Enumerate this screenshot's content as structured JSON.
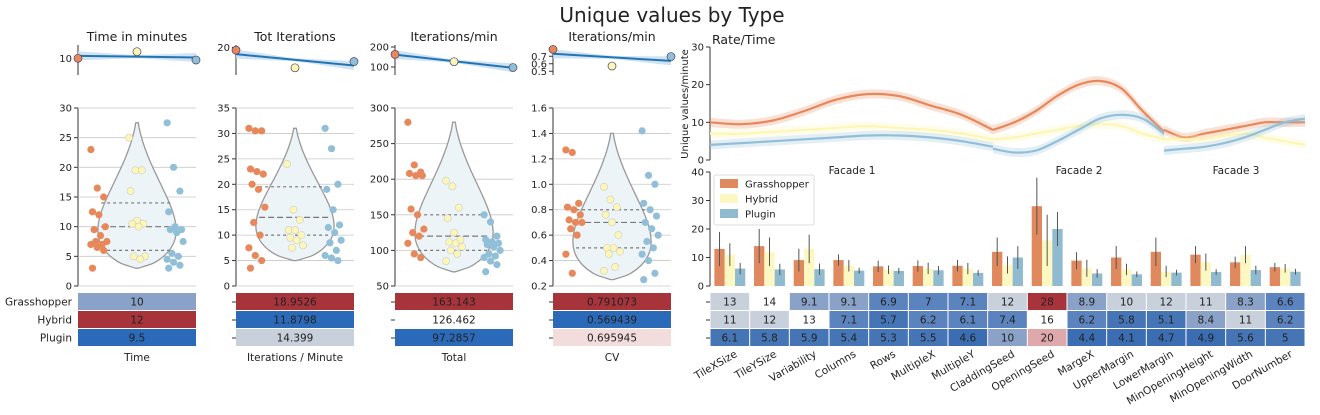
{
  "figure": {
    "title": "Unique values by Type",
    "type_labels": [
      "Grasshopper",
      "Hybrid",
      "Plugin"
    ],
    "colors": {
      "Grasshopper": "#e8875a",
      "Hybrid": "#fdf6b5",
      "Plugin": "#92bfd8",
      "trend": "#2275b5",
      "trend_band": "#c6dcef",
      "violin_fill": "#edf4f8",
      "violin_line": "#999999",
      "bar_gh": "#e0895e",
      "bar_hy": "#fdf8c2",
      "bar_pl": "#8fbad0",
      "cell_dark_red": "#a8343b",
      "cell_blue": "#2b6ab8",
      "cell_light": "#c8d0dc",
      "cell_pale_pink": "#f3dcdc",
      "cell_mid_blue": "#8aa2c8",
      "cell_pink": "#dfa9ab"
    }
  },
  "chart_data": [
    {
      "type": "scatter",
      "title": "Time in minutes",
      "xlabel": "Time",
      "trend_ylim": [
        5,
        14
      ],
      "trend_yticks": [
        "10"
      ],
      "trend_points": [
        10,
        12,
        9.5
      ],
      "ylim": [
        0,
        30
      ],
      "yticks": [
        "0",
        "5",
        "10",
        "15",
        "20",
        "25",
        "30"
      ],
      "violin": {
        "quartiles": [
          6,
          10,
          14
        ],
        "max": 27.5,
        "min": 3
      },
      "points": {
        "Grasshopper": [
          23,
          16.5,
          15,
          12.5,
          12,
          10,
          9.5,
          8.5,
          7.5,
          7.5,
          7,
          7,
          6.5,
          6,
          3
        ],
        "Hybrid": [
          25,
          19.5,
          19.5,
          16,
          11,
          10.5,
          10.5,
          10,
          5,
          5,
          4.5
        ],
        "Plugin": [
          27.5,
          20,
          16,
          12.5,
          10,
          9.5,
          9.5,
          9,
          7.5,
          5.5,
          5,
          4.5,
          4,
          3.5,
          3
        ]
      },
      "table": [
        {
          "label": "Grasshopper",
          "value": "10",
          "color": "#8aa2c8"
        },
        {
          "label": "Hybrid",
          "value": "12",
          "color": "#a8343b"
        },
        {
          "label": "Plugin",
          "value": "9.5",
          "color": "#2b6ab8"
        }
      ]
    },
    {
      "type": "scatter",
      "title": "Tot Iterations",
      "xlabel": "Iterations / Minute",
      "trend_ylim": [
        9,
        21
      ],
      "trend_yticks": [
        "20"
      ],
      "trend_points": [
        18.9526,
        11.8798,
        14.399
      ],
      "ylim": [
        0,
        35
      ],
      "yticks": [
        "0",
        "5",
        "10",
        "15",
        "20",
        "25",
        "30",
        "35"
      ],
      "violin": {
        "quartiles": [
          10,
          13.5,
          19.5
        ],
        "max": 31,
        "min": 5
      },
      "points": {
        "Grasshopper": [
          31,
          30.5,
          30.5,
          23,
          22.5,
          22,
          20,
          19,
          15.5,
          12.5,
          10,
          7.5,
          6,
          5,
          3.5
        ],
        "Hybrid": [
          24,
          15,
          13,
          11,
          11,
          10,
          9.5,
          9,
          8,
          7.5
        ],
        "Plugin": [
          31,
          27,
          20,
          19,
          15,
          12,
          11.5,
          10.5,
          9,
          8.5,
          7,
          6,
          5.5,
          5
        ]
      },
      "table": [
        {
          "label": "Grasshopper",
          "value": "18.9526",
          "color": "#a8343b"
        },
        {
          "label": "Hybrid",
          "value": "11.8798",
          "color": "#2b6ab8"
        },
        {
          "label": "Plugin",
          "value": "14.399",
          "color": "#c8d0dc"
        }
      ]
    },
    {
      "type": "scatter",
      "title": "Iterations/min",
      "xlabel": "Total",
      "trend_ylim": [
        60,
        210
      ],
      "trend_yticks": [
        "100",
        "200"
      ],
      "trend_points": [
        163.143,
        126.462,
        97.2857
      ],
      "ylim": [
        50,
        300
      ],
      "yticks": [
        "50",
        "100",
        "150",
        "200",
        "250",
        "300"
      ],
      "violin": {
        "quartiles": [
          100,
          120,
          150
        ],
        "max": 280,
        "min": 70
      },
      "points": {
        "Grasshopper": [
          280,
          220,
          210,
          208,
          205,
          205,
          158,
          150,
          130,
          125,
          120,
          110,
          95,
          90
        ],
        "Hybrid": [
          198,
          190,
          160,
          145,
          125,
          115,
          112,
          110,
          105,
          100,
          95,
          85
        ],
        "Plugin": [
          150,
          140,
          120,
          115,
          112,
          110,
          108,
          105,
          100,
          95,
          92,
          90,
          85,
          80,
          70
        ]
      },
      "table": [
        {
          "label": "Grasshopper",
          "value": "163.143",
          "color": "#a8343b"
        },
        {
          "label": "Hybrid",
          "value": "126.462",
          "color": "#ffffff"
        },
        {
          "label": "Plugin",
          "value": "97.2857",
          "color": "#2b6ab8"
        }
      ]
    },
    {
      "type": "scatter",
      "title": "Iterations/min",
      "xlabel": "CV",
      "trend_ylim": [
        0.45,
        0.85
      ],
      "trend_yticks": [
        "0.5",
        "0.6",
        "0.7"
      ],
      "trend_points": [
        0.791073,
        0.569439,
        0.695945
      ],
      "ylim": [
        0.2,
        1.6
      ],
      "yticks": [
        "0.2",
        "0.4",
        "0.6",
        "0.8",
        "1.0",
        "1.2",
        "1.4",
        "1.6"
      ],
      "violin": {
        "quartiles": [
          0.5,
          0.7,
          0.8
        ],
        "max": 1.4,
        "min": 0.25
      },
      "points": {
        "Grasshopper": [
          1.27,
          1.25,
          0.85,
          0.82,
          0.8,
          0.76,
          0.72,
          0.7,
          0.7,
          0.65,
          0.6,
          0.45,
          0.3
        ],
        "Hybrid": [
          0.98,
          0.88,
          0.82,
          0.76,
          0.7,
          0.6,
          0.5,
          0.5,
          0.47,
          0.45,
          0.35,
          0.32
        ],
        "Plugin": [
          1.42,
          1.07,
          1.0,
          0.85,
          0.8,
          0.75,
          0.7,
          0.65,
          0.6,
          0.55,
          0.5,
          0.45,
          0.4,
          0.3,
          0.25
        ]
      },
      "table": [
        {
          "label": "Grasshopper",
          "value": "0.791073",
          "color": "#a8343b"
        },
        {
          "label": "Hybrid",
          "value": "0.569439",
          "color": "#2b6ab8"
        },
        {
          "label": "Plugin",
          "value": "0.695945",
          "color": "#f3dcdc"
        }
      ]
    },
    {
      "type": "line",
      "title": "Rate/Time",
      "ylabel": "Unique values/minute",
      "ylim": [
        0,
        30
      ],
      "yticks": [
        "0",
        "10",
        "20",
        "30"
      ],
      "facades": [
        "Facade 1",
        "Facade 2",
        "Facade 3"
      ],
      "series": [
        {
          "name": "Grasshopper",
          "segments": [
            [
              10,
              9.5,
              10.5,
              13,
              16,
              17.5,
              17,
              14.5,
              12,
              8
            ],
            [
              8,
              10,
              13,
              17,
              20,
              21,
              19,
              13,
              7.5
            ],
            [
              8,
              6,
              7,
              8,
              9,
              10,
              10,
              10
            ]
          ]
        },
        {
          "name": "Hybrid",
          "segments": [
            [
              7,
              7,
              7.5,
              8,
              8.5,
              9,
              8.5,
              8,
              7,
              5.5
            ],
            [
              5.5,
              6,
              7,
              8,
              9,
              9.5,
              9,
              7,
              5.5
            ],
            [
              5.5,
              5.5,
              5.5,
              6.5,
              7,
              6,
              5,
              4
            ]
          ]
        },
        {
          "name": "Plugin",
          "segments": [
            [
              4,
              4.5,
              5,
              5.5,
              6,
              6.5,
              6.5,
              6,
              5,
              3.5
            ],
            [
              3,
              2,
              2.5,
              5,
              8,
              11,
              12,
              11,
              7
            ],
            [
              2.5,
              3,
              3.5,
              4.5,
              6,
              8,
              10,
              11
            ]
          ]
        }
      ]
    },
    {
      "type": "bar",
      "ylim": [
        0,
        40
      ],
      "yticks": [
        "0",
        "10",
        "20",
        "30",
        "40"
      ],
      "legend": [
        "Grasshopper",
        "Hybrid",
        "Plugin"
      ],
      "legend_position": "top-left",
      "categories": [
        "TileXSize",
        "TileYSize",
        "Variability",
        "Columns",
        "Rows",
        "MultipleX",
        "MultipleY",
        "CladdingSeed",
        "OpeningSeed",
        "MargeX",
        "UpperMargin",
        "LowerMargin",
        "MinOpeningHeight",
        "MinOpeningWidth",
        "DoorNumber"
      ],
      "series": [
        {
          "name": "Grasshopper",
          "values": [
            13,
            14,
            9.1,
            9.1,
            6.9,
            7,
            7.1,
            12,
            28,
            8.9,
            10,
            12,
            11,
            8.3,
            6.6
          ],
          "errors": [
            6,
            6,
            4,
            2,
            2,
            2,
            2,
            5,
            10,
            3,
            4,
            5,
            3,
            2,
            1.5
          ]
        },
        {
          "name": "Hybrid",
          "values": [
            11,
            12,
            13,
            7.1,
            5.7,
            6.2,
            6.1,
            7.4,
            16,
            6.2,
            5.8,
            5.1,
            8.4,
            11,
            6.2
          ],
          "errors": [
            4,
            5,
            5,
            2,
            1.5,
            2,
            2,
            3,
            9,
            3,
            2,
            2,
            3,
            3,
            1.5
          ]
        },
        {
          "name": "Plugin",
          "values": [
            6.1,
            5.8,
            5.9,
            5.4,
            5.3,
            5.5,
            4.6,
            10,
            20,
            4.4,
            4.1,
            4.7,
            4.9,
            5.6,
            5
          ],
          "errors": [
            2,
            2,
            2,
            1,
            1,
            1.5,
            1,
            4,
            6,
            1.5,
            1,
            1,
            1,
            1.5,
            1
          ]
        }
      ],
      "table": {
        "rows": [
          {
            "label": "",
            "cells": [
              {
                "value": "13",
                "color": "#c8d0dc"
              },
              {
                "value": "14",
                "color": "#ffffff"
              },
              {
                "value": "9.1",
                "color": "#8aa2c8"
              },
              {
                "value": "9.1",
                "color": "#8aa2c8"
              },
              {
                "value": "6.9",
                "color": "#5b83bd"
              },
              {
                "value": "7",
                "color": "#5b83bd"
              },
              {
                "value": "7.1",
                "color": "#5b83bd"
              },
              {
                "value": "12",
                "color": "#c8d0dc"
              },
              {
                "value": "28",
                "color": "#a8343b"
              },
              {
                "value": "8.9",
                "color": "#8aa2c8"
              },
              {
                "value": "10",
                "color": "#c8d0dc"
              },
              {
                "value": "12",
                "color": "#c8d0dc"
              },
              {
                "value": "11",
                "color": "#c8d0dc"
              },
              {
                "value": "8.3",
                "color": "#8aa2c8"
              },
              {
                "value": "6.6",
                "color": "#5b83bd"
              }
            ]
          },
          {
            "label": "",
            "cells": [
              {
                "value": "11",
                "color": "#c8d0dc"
              },
              {
                "value": "12",
                "color": "#c8d0dc"
              },
              {
                "value": "13",
                "color": "#ffffff"
              },
              {
                "value": "7.1",
                "color": "#5b83bd"
              },
              {
                "value": "5.7",
                "color": "#4675b5"
              },
              {
                "value": "6.2",
                "color": "#5b83bd"
              },
              {
                "value": "6.1",
                "color": "#5b83bd"
              },
              {
                "value": "7.4",
                "color": "#5b83bd"
              },
              {
                "value": "16",
                "color": "#ffffff"
              },
              {
                "value": "6.2",
                "color": "#5b83bd"
              },
              {
                "value": "5.8",
                "color": "#4675b5"
              },
              {
                "value": "5.1",
                "color": "#4675b5"
              },
              {
                "value": "8.4",
                "color": "#8aa2c8"
              },
              {
                "value": "11",
                "color": "#c8d0dc"
              },
              {
                "value": "6.2",
                "color": "#5b83bd"
              }
            ]
          },
          {
            "label": "",
            "cells": [
              {
                "value": "6.1",
                "color": "#4675b5"
              },
              {
                "value": "5.8",
                "color": "#4675b5"
              },
              {
                "value": "5.9",
                "color": "#4675b5"
              },
              {
                "value": "5.4",
                "color": "#4675b5"
              },
              {
                "value": "5.3",
                "color": "#4675b5"
              },
              {
                "value": "5.5",
                "color": "#4675b5"
              },
              {
                "value": "4.6",
                "color": "#3b6db3"
              },
              {
                "value": "10",
                "color": "#8aa2c8"
              },
              {
                "value": "20",
                "color": "#dfa9ab"
              },
              {
                "value": "4.4",
                "color": "#3b6db3"
              },
              {
                "value": "4.1",
                "color": "#3b6db3"
              },
              {
                "value": "4.7",
                "color": "#3b6db3"
              },
              {
                "value": "4.9",
                "color": "#3b6db3"
              },
              {
                "value": "5.6",
                "color": "#4675b5"
              },
              {
                "value": "5",
                "color": "#4675b5"
              }
            ]
          }
        ]
      }
    }
  ]
}
